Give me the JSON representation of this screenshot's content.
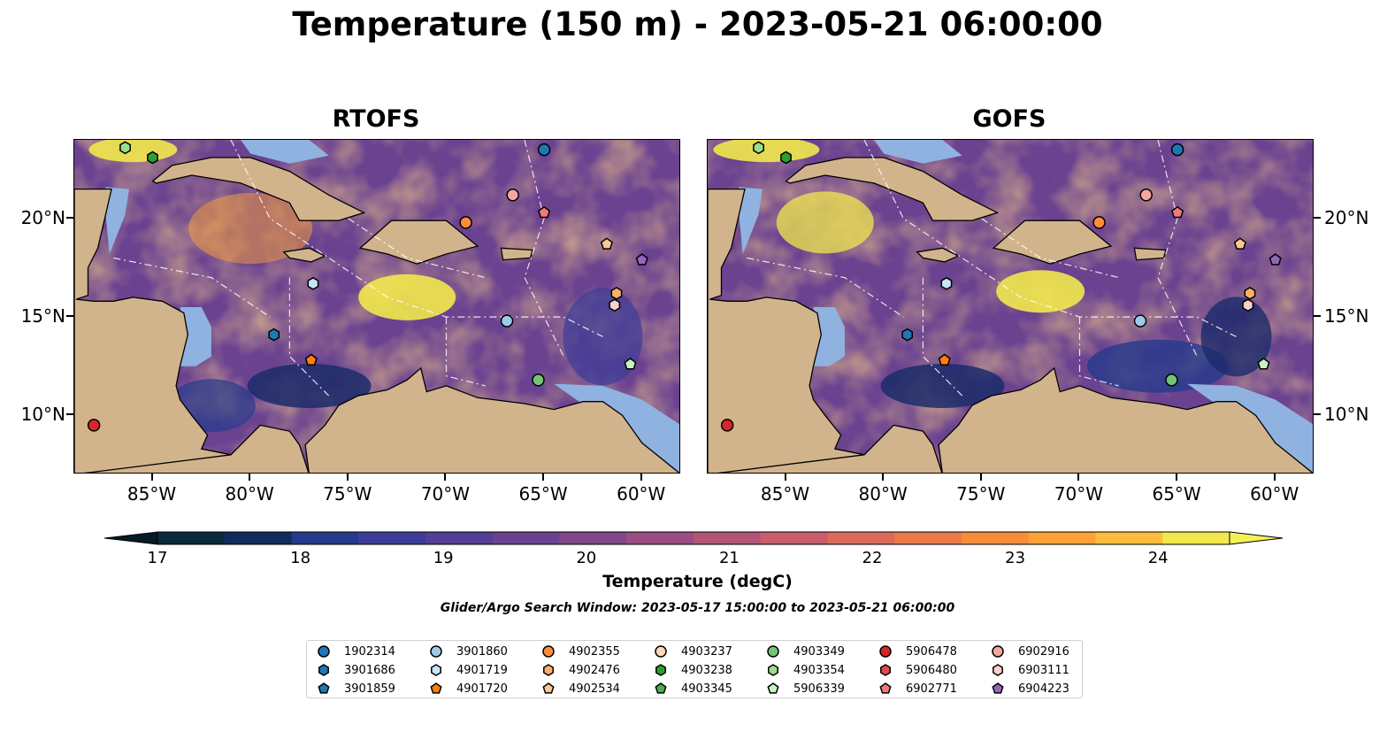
{
  "title": "Temperature (150 m) - 2023-05-21 06:00:00",
  "panels": [
    {
      "title": "RTOFS"
    },
    {
      "title": "GOFS"
    }
  ],
  "axes": {
    "lon_ticks": [
      "85°W",
      "80°W",
      "75°W",
      "70°W",
      "65°W",
      "60°W"
    ],
    "lat_ticks": [
      "20°N",
      "15°N",
      "10°N"
    ],
    "lon_range": [
      -89,
      -58
    ],
    "lat_range": [
      7,
      24
    ]
  },
  "colorbar": {
    "label": "Temperature (degC)",
    "ticks": [
      "17",
      "18",
      "19",
      "20",
      "21",
      "22",
      "23",
      "24"
    ],
    "range": [
      17,
      24.5
    ],
    "extend": "both",
    "colors": [
      "#0a2a3c",
      "#122b5e",
      "#263a8c",
      "#3d3d99",
      "#533f96",
      "#6a4290",
      "#82478b",
      "#9a4d82",
      "#b25576",
      "#c85d6b",
      "#dc6a5a",
      "#ec7a49",
      "#f78c3b",
      "#fca135",
      "#fcbd3c",
      "#f2e84d"
    ]
  },
  "search_window": "Glider/Argo Search Window: 2023-05-17 15:00:00 to 2023-05-21 06:00:00",
  "land_color": "#d2b48c",
  "shelf_color": "#8fb2e0",
  "legend": [
    {
      "id": "1902314",
      "marker": "circle",
      "color": "#1f77b4"
    },
    {
      "id": "3901686",
      "marker": "hexagon",
      "color": "#1f77b4"
    },
    {
      "id": "3901859",
      "marker": "pentagon",
      "color": "#1f77b4"
    },
    {
      "id": "3901860",
      "marker": "circle",
      "color": "#9ecae9"
    },
    {
      "id": "4901719",
      "marker": "hexagon",
      "color": "#c6e5f7"
    },
    {
      "id": "4901720",
      "marker": "pentagon",
      "color": "#ff7f0e"
    },
    {
      "id": "4902355",
      "marker": "circle",
      "color": "#fd8d3c"
    },
    {
      "id": "4902476",
      "marker": "hexagon",
      "color": "#fdae6b"
    },
    {
      "id": "4902534",
      "marker": "pentagon",
      "color": "#fdc692"
    },
    {
      "id": "4903237",
      "marker": "circle",
      "color": "#fdd9b8"
    },
    {
      "id": "4903238",
      "marker": "hexagon",
      "color": "#2ca02c"
    },
    {
      "id": "4903345",
      "marker": "pentagon",
      "color": "#4daf4a"
    },
    {
      "id": "4903349",
      "marker": "circle",
      "color": "#74c476"
    },
    {
      "id": "4903354",
      "marker": "hexagon",
      "color": "#98df8a"
    },
    {
      "id": "5906339",
      "marker": "pentagon",
      "color": "#c7f2c0"
    },
    {
      "id": "5906478",
      "marker": "circle",
      "color": "#d62728"
    },
    {
      "id": "5906480",
      "marker": "hexagon",
      "color": "#e34a4a"
    },
    {
      "id": "6902771",
      "marker": "pentagon",
      "color": "#f07a7a"
    },
    {
      "id": "6902916",
      "marker": "circle",
      "color": "#f4a6a0"
    },
    {
      "id": "6903111",
      "marker": "hexagon",
      "color": "#fbd0cc"
    },
    {
      "id": "6904223",
      "marker": "pentagon",
      "color": "#9467bd"
    }
  ],
  "floats": [
    {
      "color": "#98df8a",
      "marker": "hexagon",
      "lon": -86.4,
      "lat": 23.6
    },
    {
      "color": "#2ca02c",
      "marker": "hexagon",
      "lon": -85.0,
      "lat": 23.1
    },
    {
      "color": "#1f77b4",
      "marker": "circle",
      "lon": -65.0,
      "lat": 23.5
    },
    {
      "color": "#f4a6a0",
      "marker": "circle",
      "lon": -66.6,
      "lat": 21.2
    },
    {
      "color": "#f07a7a",
      "marker": "pentagon",
      "lon": -65.0,
      "lat": 20.3
    },
    {
      "color": "#fd8d3c",
      "marker": "circle",
      "lon": -69.0,
      "lat": 19.8
    },
    {
      "color": "#fdc692",
      "marker": "pentagon",
      "lon": -61.8,
      "lat": 18.7
    },
    {
      "color": "#9467bd",
      "marker": "pentagon",
      "lon": -60.0,
      "lat": 17.9
    },
    {
      "color": "#c6e5f7",
      "marker": "hexagon",
      "lon": -76.8,
      "lat": 16.7
    },
    {
      "color": "#fdae6b",
      "marker": "hexagon",
      "lon": -61.3,
      "lat": 16.2
    },
    {
      "color": "#fbd0cc",
      "marker": "hexagon",
      "lon": -61.4,
      "lat": 15.6
    },
    {
      "color": "#9ecae9",
      "marker": "circle",
      "lon": -66.9,
      "lat": 14.8
    },
    {
      "color": "#1f77b4",
      "marker": "hexagon",
      "lon": -78.8,
      "lat": 14.1
    },
    {
      "color": "#ff7f0e",
      "marker": "pentagon",
      "lon": -76.9,
      "lat": 12.8
    },
    {
      "color": "#c7f2c0",
      "marker": "pentagon",
      "lon": -60.6,
      "lat": 12.6
    },
    {
      "color": "#74c476",
      "marker": "circle",
      "lon": -65.3,
      "lat": 11.8
    },
    {
      "color": "#d62728",
      "marker": "circle",
      "lon": -88.0,
      "lat": 9.5
    }
  ]
}
